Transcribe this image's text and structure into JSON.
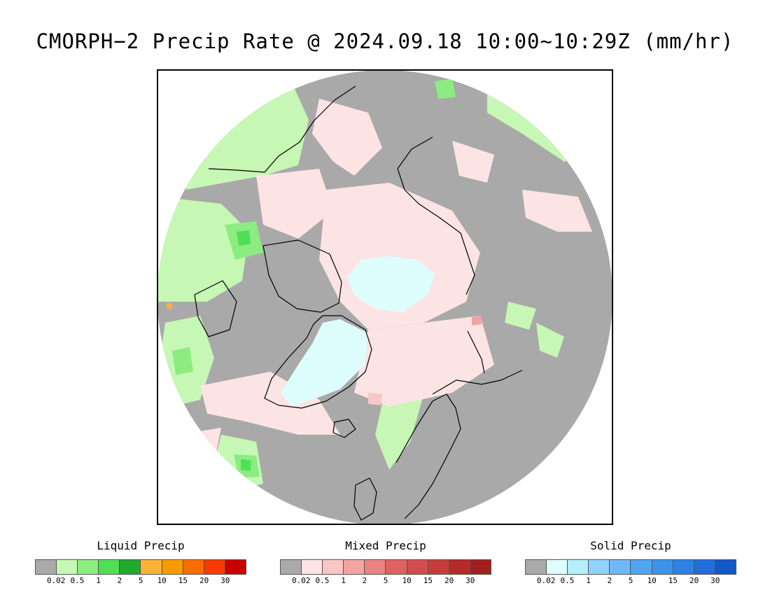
{
  "title": "CMORPH−2 Precip Rate @ 2024.09.18 10:00∼10:29Z (mm/hr)",
  "map": {
    "projection": "north-polar-stereographic",
    "background_color": "#a9a9a9",
    "coastline_color": "#000000"
  },
  "legends": [
    {
      "id": "liquid",
      "title": "Liquid Precip",
      "colors": [
        "#a9a9a9",
        "#c6f7b4",
        "#8cec82",
        "#4fdf57",
        "#22a92f",
        "#fbb237",
        "#fb9a00",
        "#fa6c00",
        "#f73a00",
        "#c80000"
      ],
      "ticks": [
        "0.02",
        "0.5",
        "1",
        "2",
        "5",
        "10",
        "15",
        "20",
        "30"
      ]
    },
    {
      "id": "mixed",
      "title": "Mixed Precip",
      "colors": [
        "#a9a9a9",
        "#fde4e4",
        "#f9c6c6",
        "#f2a3a3",
        "#eb8282",
        "#de6262",
        "#d44c4c",
        "#c93b3b",
        "#b62a2a",
        "#a31f1f"
      ],
      "ticks": [
        "0.02",
        "0.5",
        "1",
        "2",
        "5",
        "10",
        "15",
        "20",
        "30"
      ]
    },
    {
      "id": "solid",
      "title": "Solid Precip",
      "colors": [
        "#a9a9a9",
        "#defdfd",
        "#b3f0fb",
        "#92d2fb",
        "#72b8f6",
        "#4ea6f0",
        "#3b94ec",
        "#2c82e4",
        "#1f6edb",
        "#1457c8"
      ],
      "ticks": [
        "0.02",
        "0.5",
        "1",
        "2",
        "5",
        "10",
        "15",
        "20",
        "30"
      ]
    }
  ]
}
